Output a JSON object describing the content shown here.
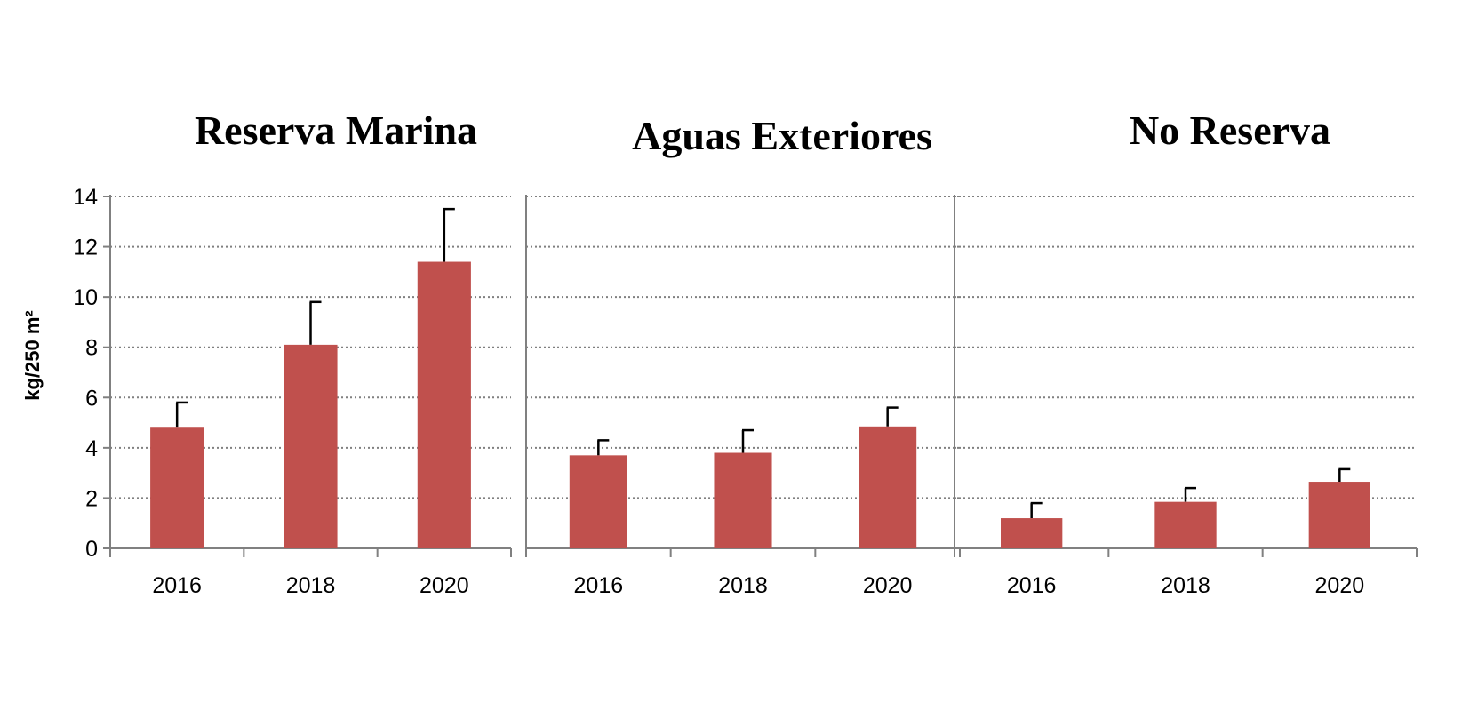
{
  "chart_data": {
    "type": "bar",
    "ylabel": "kg/250 m²",
    "ylim": [
      0,
      14
    ],
    "yticks": [
      0,
      2,
      4,
      6,
      8,
      10,
      12,
      14
    ],
    "grid": true,
    "bar_color": "#c0504d",
    "panels": [
      {
        "title": "Reserva Marina",
        "categories": [
          "2016",
          "2018",
          "2020"
        ],
        "values": [
          4.8,
          8.1,
          11.4
        ],
        "errors": [
          1.0,
          1.7,
          2.1
        ]
      },
      {
        "title": "Aguas Exteriores",
        "categories": [
          "2016",
          "2018",
          "2020"
        ],
        "values": [
          3.7,
          3.8,
          4.85
        ],
        "errors": [
          0.6,
          0.9,
          0.75
        ]
      },
      {
        "title": "No Reserva",
        "categories": [
          "2016",
          "2018",
          "2020"
        ],
        "values": [
          1.2,
          1.85,
          2.65
        ],
        "errors": [
          0.6,
          0.55,
          0.5
        ]
      }
    ]
  }
}
